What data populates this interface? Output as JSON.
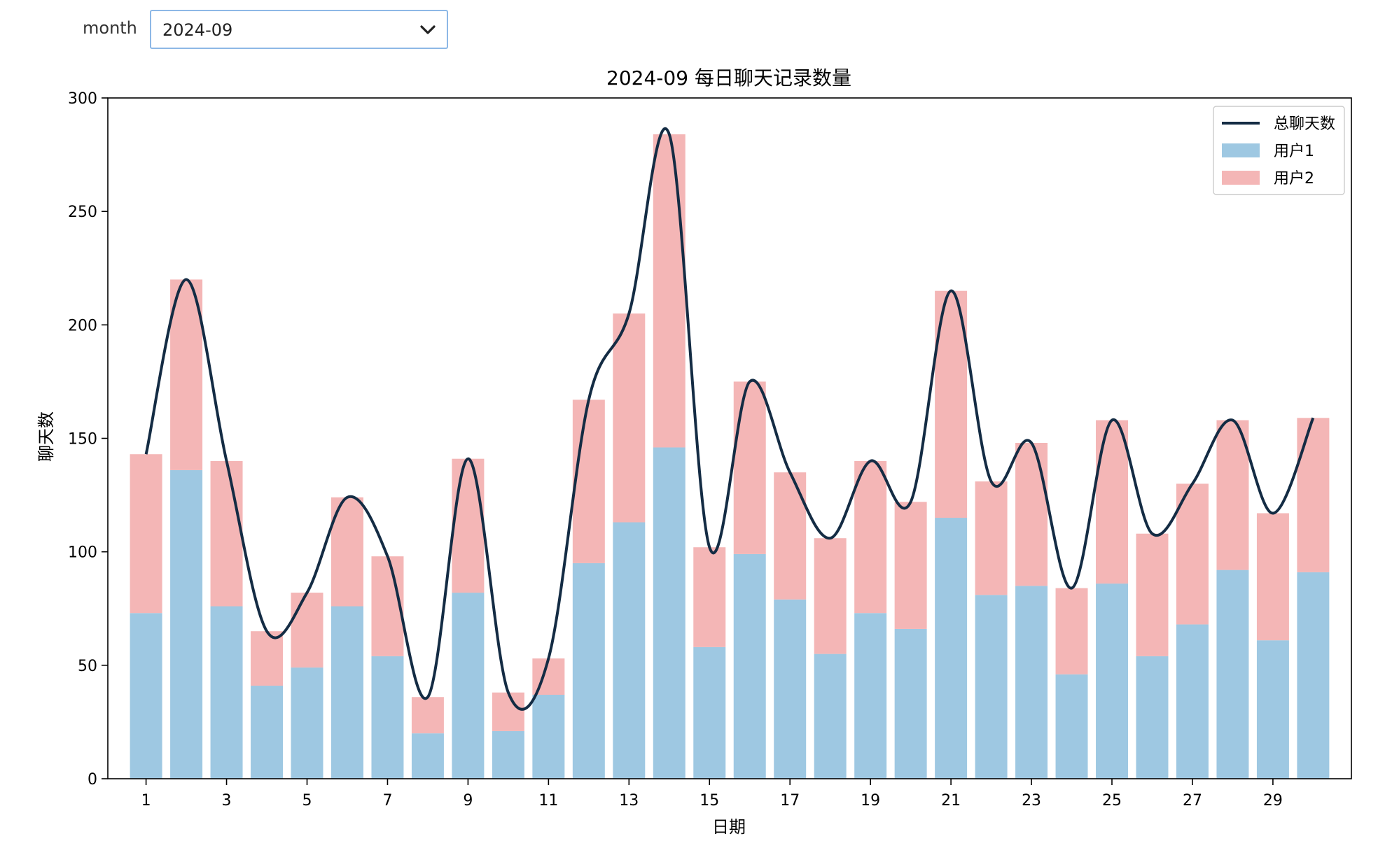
{
  "controls": {
    "month_label": "month",
    "month_selected": "2024-09"
  },
  "icons": {
    "dropdown": "chevron-down-icon"
  },
  "colors": {
    "user1": "#9ec8e2",
    "user2": "#f4b6b6",
    "total_line": "#142c44",
    "axis": "#000000"
  },
  "chart_data": {
    "type": "bar",
    "stacked": true,
    "title": "2024-09 每日聊天记录数量",
    "xlabel": "日期",
    "ylabel": "聊天数",
    "ylim": [
      0,
      300
    ],
    "yticks": [
      0,
      50,
      100,
      150,
      200,
      250,
      300
    ],
    "xticks": [
      1,
      3,
      5,
      7,
      9,
      11,
      13,
      15,
      17,
      19,
      21,
      23,
      25,
      27,
      29
    ],
    "x": [
      1,
      2,
      3,
      4,
      5,
      6,
      7,
      8,
      9,
      10,
      11,
      12,
      13,
      14,
      15,
      16,
      17,
      18,
      19,
      20,
      21,
      22,
      23,
      24,
      25,
      26,
      27,
      28,
      29,
      30
    ],
    "series": [
      {
        "name": "用户1",
        "kind": "bar",
        "values": [
          73,
          136,
          76,
          41,
          49,
          76,
          54,
          20,
          82,
          21,
          37,
          95,
          113,
          146,
          58,
          99,
          79,
          55,
          73,
          66,
          115,
          81,
          85,
          46,
          86,
          54,
          68,
          92,
          61,
          91
        ]
      },
      {
        "name": "用户2",
        "kind": "bar",
        "values": [
          70,
          84,
          64,
          24,
          33,
          48,
          44,
          16,
          59,
          17,
          16,
          72,
          92,
          138,
          44,
          76,
          56,
          51,
          67,
          56,
          100,
          50,
          63,
          38,
          72,
          54,
          62,
          66,
          56,
          68
        ]
      },
      {
        "name": "总聊天数",
        "kind": "line",
        "smooth": true,
        "values": [
          143,
          220,
          140,
          65,
          82,
          124,
          98,
          36,
          141,
          38,
          53,
          167,
          205,
          284,
          102,
          175,
          135,
          106,
          140,
          122,
          215,
          131,
          148,
          84,
          158,
          108,
          130,
          158,
          117,
          159
        ]
      }
    ],
    "legend": {
      "position": "top-right",
      "entries": [
        "总聊天数",
        "用户1",
        "用户2"
      ]
    }
  }
}
